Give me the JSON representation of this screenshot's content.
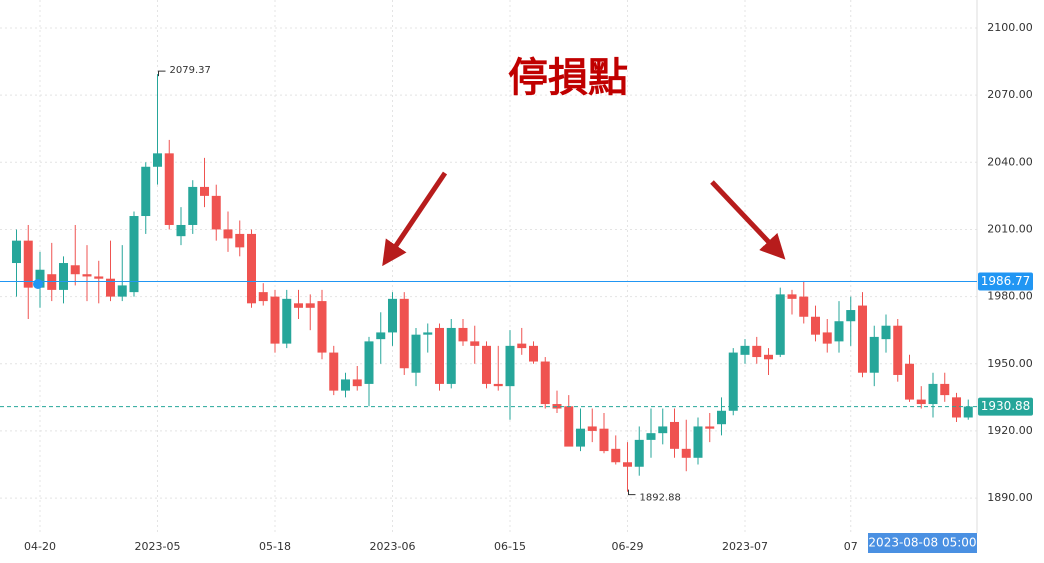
{
  "chart_data": {
    "type": "candlestick",
    "title": "停損點",
    "categories": [
      null,
      null,
      "04-20",
      null,
      null,
      null,
      null,
      null,
      null,
      null,
      null,
      null,
      "2023-05",
      null,
      null,
      null,
      null,
      null,
      null,
      null,
      null,
      null,
      "05-18",
      null,
      null,
      null,
      null,
      null,
      null,
      null,
      null,
      null,
      "2023-06",
      null,
      null,
      null,
      null,
      null,
      null,
      null,
      null,
      null,
      "06-15",
      null,
      null,
      null,
      null,
      null,
      null,
      null,
      null,
      null,
      "06-29",
      null,
      null,
      null,
      null,
      null,
      null,
      null,
      null,
      null,
      "2023-07",
      null,
      null,
      null,
      null,
      null,
      null,
      null,
      null,
      "07",
      null,
      null,
      null,
      null,
      null,
      null,
      null,
      null,
      null,
      null
    ],
    "open": [
      1995,
      2005,
      1984,
      1990,
      1983,
      1994,
      1990,
      1989,
      1988,
      1980,
      1982,
      2016,
      2038,
      2044,
      2007,
      2012,
      2029,
      2025,
      2010,
      2008,
      2008,
      1982,
      1980,
      1959,
      1977,
      1977,
      1978,
      1955,
      1938,
      1943,
      1941,
      1961,
      1964,
      1979,
      1946,
      1963,
      1966,
      1941,
      1966,
      1960,
      1958,
      1941,
      1940,
      1959,
      1958,
      1951,
      1932,
      1931,
      1913,
      1922,
      1921,
      1912,
      1906,
      1904,
      1916,
      1919,
      1924,
      1912,
      1908,
      1922,
      1923,
      1929,
      1954,
      1958,
      1954,
      1954,
      1981,
      1980,
      1971,
      1964,
      1960,
      1969,
      1976,
      1946,
      1961,
      1967,
      1950,
      1934,
      1932,
      1941,
      1935,
      1926
    ],
    "high": [
      2010,
      2012,
      2000,
      2004,
      1998,
      2012,
      2003,
      1996,
      2005,
      2003,
      2018,
      2040,
      2079.37,
      2050,
      2020,
      2032,
      2042,
      2030,
      2018,
      2014,
      2010,
      1986,
      1983,
      1983,
      1983,
      1981,
      1983,
      1958,
      1946,
      1949,
      1962,
      1973,
      1982,
      1982,
      1966,
      1968,
      1968,
      1970,
      1970,
      1967,
      1960,
      1958,
      1965,
      1966,
      1960,
      1953,
      1938,
      1936,
      1930,
      1930,
      1928,
      1918,
      1915,
      1922,
      1930,
      1930,
      1930,
      1925,
      1926,
      1928,
      1935,
      1957,
      1961,
      1962,
      1957,
      1984,
      1983,
      1987,
      1976,
      1970,
      1978,
      1980,
      1982,
      1967,
      1972,
      1970,
      1954,
      1940,
      1946,
      1946,
      1937,
      1934
    ],
    "low": [
      1980,
      1970,
      1975,
      1978,
      1977,
      1985,
      1978,
      1977,
      1978,
      1978,
      1980,
      2008,
      2030,
      2010,
      2003,
      2008,
      2020,
      2005,
      2000,
      1998,
      1975,
      1976,
      1955,
      1957,
      1970,
      1965,
      1952,
      1936,
      1935,
      1938,
      1931,
      1950,
      1958,
      1945,
      1940,
      1955,
      1938,
      1939,
      1958,
      1950,
      1939,
      1938,
      1925,
      1954,
      1950,
      1930,
      1928,
      1914,
      1911,
      1915,
      1910,
      1905,
      1892.88,
      1900,
      1908,
      1914,
      1908,
      1902,
      1905,
      1915,
      1918,
      1927,
      1950,
      1950,
      1945,
      1953,
      1972,
      1968,
      1960,
      1955,
      1955,
      1958,
      1944,
      1940,
      1955,
      1942,
      1933,
      1930,
      1926,
      1933,
      1924,
      1925
    ],
    "close": [
      2005,
      1984,
      1992,
      1983,
      1995,
      1990,
      1989,
      1988,
      1980,
      1985,
      2016,
      2038,
      2044,
      2012,
      2012,
      2029,
      2025,
      2010,
      2006,
      2002,
      1977,
      1978,
      1959,
      1979,
      1975,
      1975,
      1955,
      1938,
      1943,
      1940,
      1960,
      1964,
      1979,
      1948,
      1963,
      1964,
      1941,
      1966,
      1960,
      1958,
      1941,
      1940,
      1958,
      1957,
      1951,
      1932,
      1930,
      1913,
      1921,
      1920,
      1911,
      1906,
      1904,
      1916,
      1919,
      1922,
      1912,
      1908,
      1922,
      1921,
      1929,
      1955,
      1958,
      1953,
      1952,
      1981,
      1979,
      1971,
      1963,
      1959,
      1969,
      1974,
      1946,
      1962,
      1967,
      1945,
      1934,
      1932,
      1941,
      1936,
      1926,
      1930.88
    ],
    "up_color": "#26a69a",
    "down_color": "#ef5350",
    "ylim": [
      1874.4,
      2112.5
    ],
    "yticks": [
      {
        "value": 1890,
        "label": "1890.00"
      },
      {
        "value": 1920,
        "label": "1920.00"
      },
      {
        "value": 1950,
        "label": "1950.00"
      },
      {
        "value": 1980,
        "label": "1980.00"
      },
      {
        "value": 2010,
        "label": "2010.00"
      },
      {
        "value": 2040,
        "label": "2040.00"
      },
      {
        "value": 2070,
        "label": "2070.00"
      },
      {
        "value": 2100,
        "label": "2100.00"
      }
    ],
    "grid": true,
    "price_lines": [
      {
        "value": 1986.77,
        "color": "#2196f3",
        "dashed": false
      },
      {
        "value": 1930.88,
        "color": "#26a69a",
        "dashed": true
      }
    ],
    "crosshair_label": "2023-08-08 05:00"
  }
}
